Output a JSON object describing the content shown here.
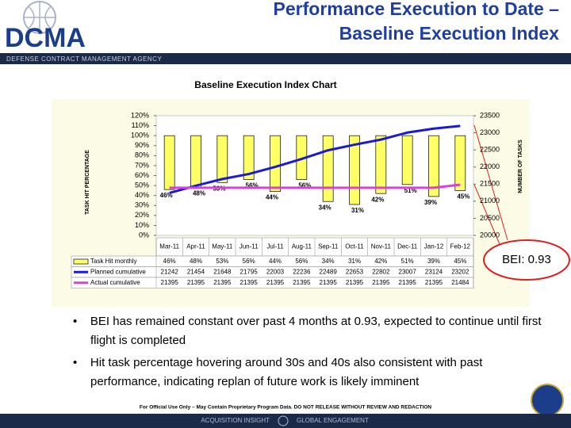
{
  "header": {
    "title_line1": "Performance Execution to Date –",
    "title_line2": "Baseline Execution Index",
    "logo_text": "DCMA",
    "agency": "DEFENSE CONTRACT MANAGEMENT AGENCY"
  },
  "chart_data": {
    "type": "bar-line",
    "title": "Baseline Execution Index Chart",
    "y_label": "TASK HIT PERCENTAGE",
    "y2_label": "NUMBER OF TASKS",
    "categories": [
      "Mar-11",
      "Apr-11",
      "May-11",
      "Jun-11",
      "Jul-11",
      "Aug-11",
      "Sep-11",
      "Oct-11",
      "Nov-11",
      "Dec-11",
      "Jan-12",
      "Feb-12"
    ],
    "series": [
      {
        "name": "Task Hit monthly",
        "type": "bar",
        "color": "#ffff66",
        "values": [
          46,
          48,
          53,
          56,
          44,
          56,
          34,
          31,
          42,
          51,
          39,
          45
        ],
        "value_labels": [
          "46%",
          "48%",
          "53%",
          "56%",
          "44%",
          "56%",
          "34%",
          "31%",
          "42%",
          "51%",
          "39%",
          "45%"
        ]
      },
      {
        "name": "Planned cumulative",
        "type": "line",
        "axis": "y2",
        "color": "#1a1ad6",
        "values": [
          21242,
          21454,
          21648,
          21795,
          22003,
          22236,
          22489,
          22653,
          22802,
          23007,
          23124,
          23202
        ]
      },
      {
        "name": "Actual cumulative",
        "type": "line",
        "axis": "y2",
        "color": "#e03ce0",
        "values": [
          21395,
          21395,
          21395,
          21395,
          21395,
          21395,
          21395,
          21395,
          21395,
          21395,
          21395,
          21484
        ]
      }
    ],
    "axis_crossing": 100,
    "ylim": [
      0,
      120
    ],
    "yticks": [
      {
        "value": 0,
        "label": "0%"
      },
      {
        "value": 10,
        "label": "10%"
      },
      {
        "value": 20,
        "label": "20%"
      },
      {
        "value": 30,
        "label": "30%"
      },
      {
        "value": 40,
        "label": "40%"
      },
      {
        "value": 50,
        "label": "50%"
      },
      {
        "value": 60,
        "label": "60%"
      },
      {
        "value": 70,
        "label": "70%"
      },
      {
        "value": 80,
        "label": "80%"
      },
      {
        "value": 90,
        "label": "90%"
      },
      {
        "value": 100,
        "label": "100%"
      },
      {
        "value": 110,
        "label": "110%"
      },
      {
        "value": 120,
        "label": "120%"
      }
    ],
    "y2lim": [
      20000,
      23500
    ],
    "y2ticks": [
      20000,
      20500,
      21000,
      21500,
      22000,
      22500,
      23000,
      23500
    ],
    "annotation": "BEI: 0.93"
  },
  "bullets": [
    "BEI has remained constant over past 4 months at 0.93, expected to continue until first flight is completed",
    "Hit task percentage hovering around 30s and 40s also consistent with past performance, indicating replan of future work is likely imminent"
  ],
  "footer": {
    "notice": "For Official Use Only – May Contain Proprietary Program Data. DO NOT RELEASE WITHOUT REVIEW AND REDACTION",
    "left": "ACQUISITION INSIGHT",
    "right": "GLOBAL ENGAGEMENT"
  }
}
